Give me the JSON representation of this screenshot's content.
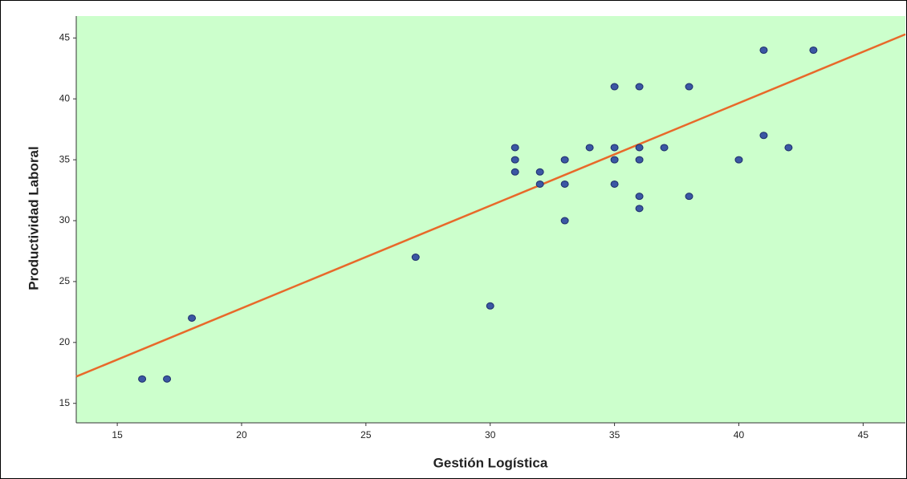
{
  "chart_data": {
    "type": "scatter",
    "x_label": "Gestión Logística",
    "y_label": "Productividad Laboral",
    "background": "#ccffcc",
    "color": "#3b57a3",
    "x": [
      16,
      17,
      18,
      27,
      30,
      31,
      31,
      31,
      32,
      32,
      33,
      33,
      33,
      34,
      35,
      35,
      35,
      35,
      36,
      36,
      36,
      36,
      36,
      37,
      38,
      38,
      40,
      41,
      41,
      42,
      43
    ],
    "values": [
      17,
      17,
      22,
      27,
      23,
      36,
      35,
      34,
      34,
      33,
      35,
      33,
      30,
      36,
      41,
      36,
      35,
      33,
      41,
      36,
      35,
      32,
      31,
      36,
      41,
      32,
      35,
      44,
      37,
      36,
      44
    ],
    "fit_line": {
      "color": "#e8692a",
      "x": [
        13.35,
        46.7
      ],
      "values": [
        17.2,
        45.3
      ]
    },
    "xlim": [
      13.35,
      46.7
    ],
    "xticks": [
      15,
      20,
      25,
      30,
      35,
      40,
      45
    ],
    "ylim": [
      13.4,
      46.8
    ],
    "yticks": [
      15,
      20,
      25,
      30,
      35,
      40,
      45
    ]
  }
}
